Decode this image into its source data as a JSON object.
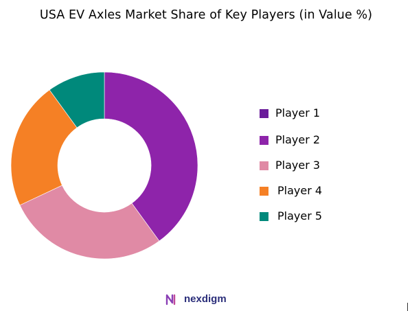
{
  "chart_data": {
    "type": "pie",
    "variant": "donut",
    "title": "USA EV Axles Market Share of Key Players (in Value %)",
    "categories": [
      "Player 1",
      "Player 2",
      "Player 3",
      "Player 4",
      "Player 5"
    ],
    "values": [
      0,
      40,
      28,
      22,
      10
    ],
    "colors": [
      "#6a1b9a",
      "#8e24aa",
      "#e08aa5",
      "#f58025",
      "#00897b"
    ],
    "legend_position": "right"
  },
  "brand": {
    "name": "nexdigm"
  }
}
